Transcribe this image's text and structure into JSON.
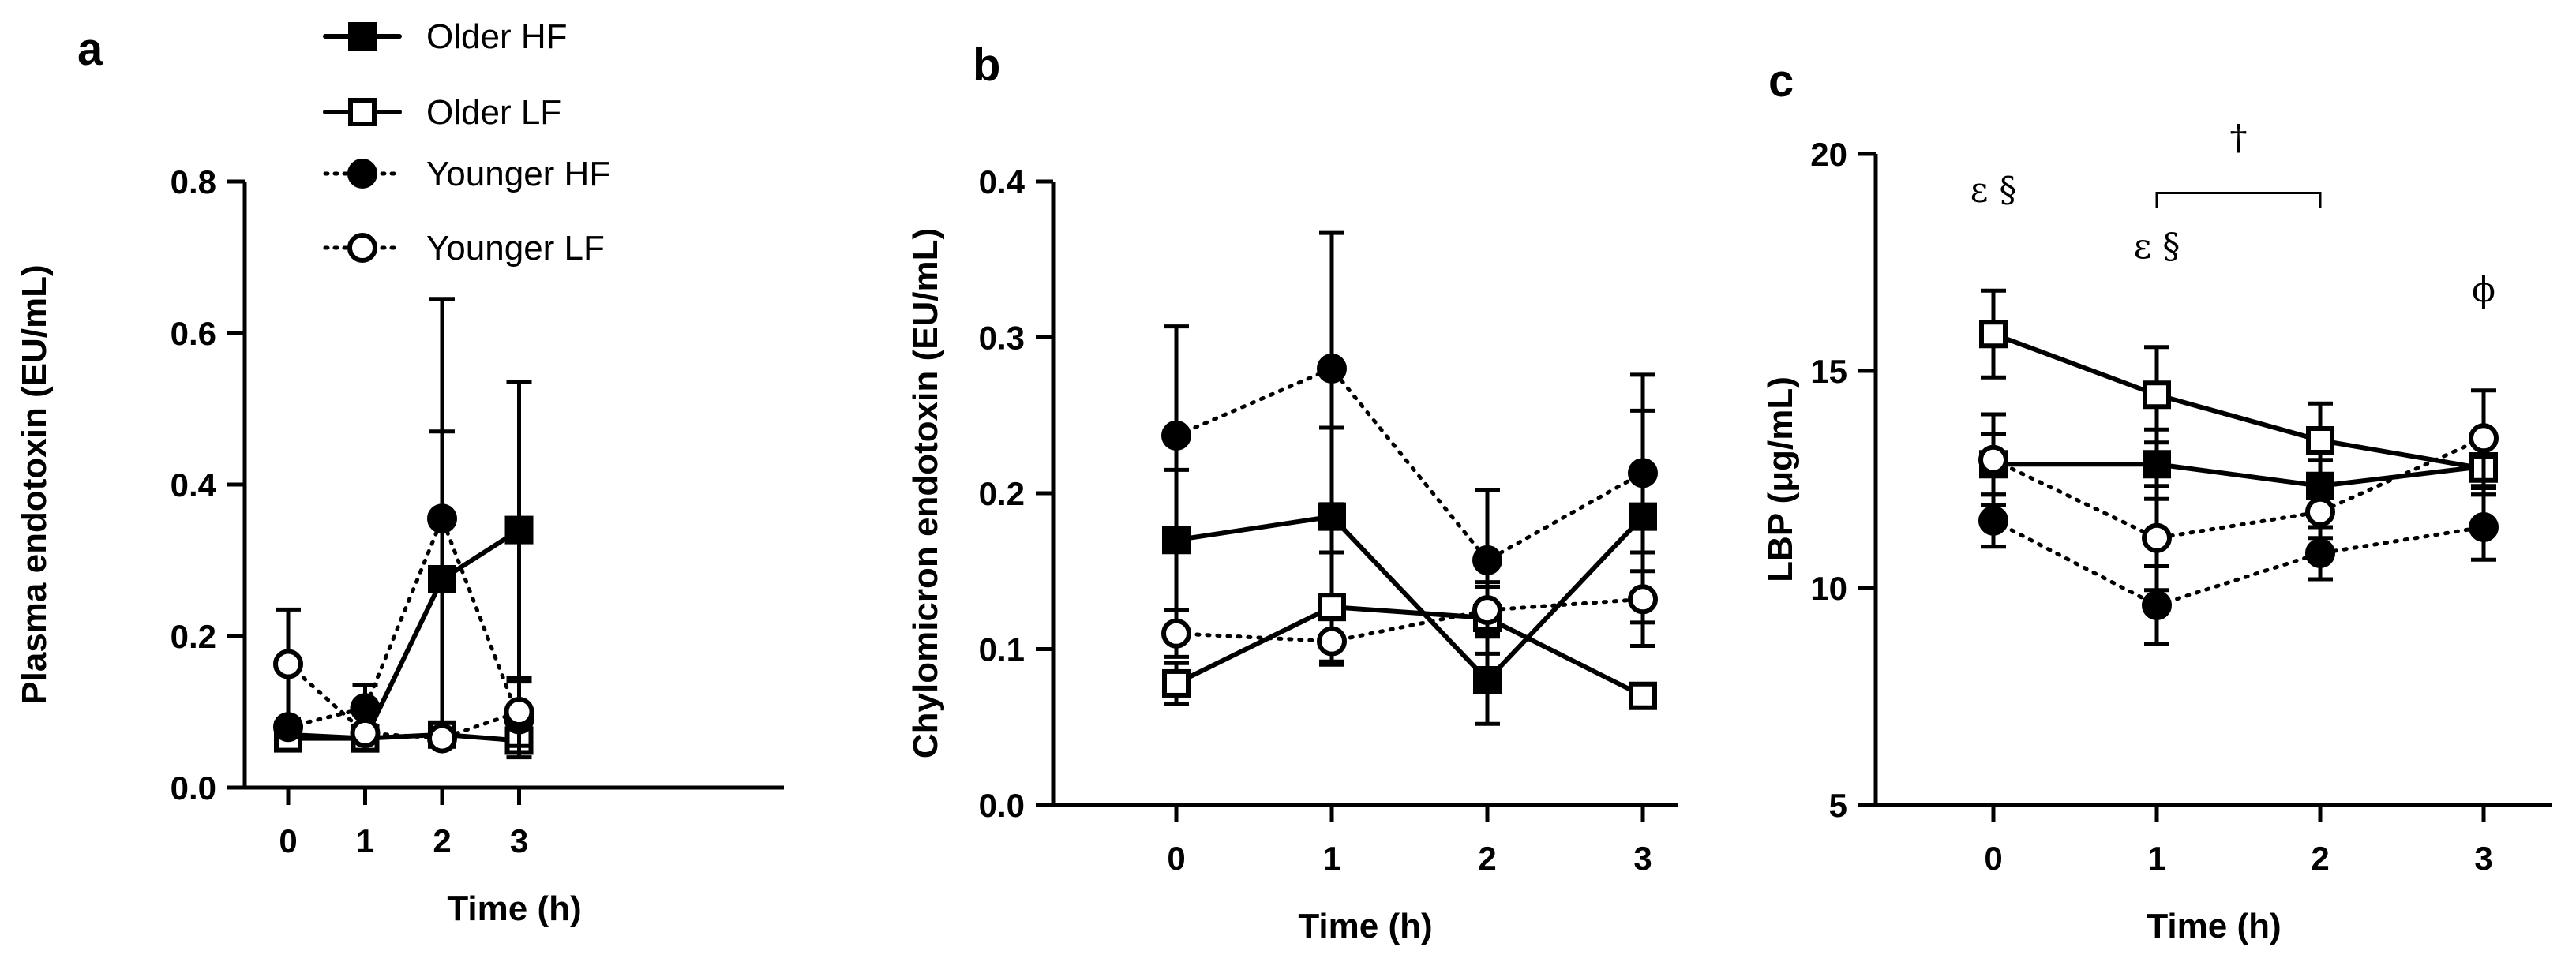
{
  "legend": [
    {
      "name": "Older HF",
      "marker": "square-filled",
      "line": "solid"
    },
    {
      "name": "Older LF",
      "marker": "square-open",
      "line": "solid"
    },
    {
      "name": "Younger HF",
      "marker": "circle-filled",
      "line": "dotted"
    },
    {
      "name": "Younger LF",
      "marker": "circle-open",
      "line": "dotted"
    }
  ],
  "chart_data": [
    {
      "panel": "a",
      "type": "line",
      "xlabel": "Time (h)",
      "ylabel": "Plasma endotoxin (EU/mL)",
      "x": [
        0,
        1,
        2,
        3
      ],
      "x_ticks": [
        "0",
        "1",
        "2",
        "3"
      ],
      "ylim": [
        0,
        0.8
      ],
      "y_ticks": [
        "0.0",
        "0.2",
        "0.4",
        "0.6",
        "0.8"
      ],
      "series": [
        {
          "name": "Older HF",
          "values": [
            0.07,
            0.065,
            0.275,
            0.34
          ],
          "error": [
            0.01,
            0.01,
            0.195,
            0.195
          ]
        },
        {
          "name": "Older LF",
          "values": [
            0.065,
            0.065,
            0.07,
            0.062
          ],
          "error": [
            0.01,
            0.01,
            0.01,
            0.01
          ]
        },
        {
          "name": "Younger HF",
          "values": [
            0.08,
            0.105,
            0.355,
            0.09
          ],
          "error": [
            0.01,
            0.03,
            0.29,
            0.05
          ]
        },
        {
          "name": "Younger LF",
          "values": [
            0.163,
            0.072,
            0.065,
            0.1
          ],
          "error": [
            0.072,
            0.01,
            0.01,
            0.045
          ]
        }
      ],
      "annotations": []
    },
    {
      "panel": "b",
      "type": "line",
      "xlabel": "Time (h)",
      "ylabel": "Chylomicron endotoxin (EU/mL)",
      "x": [
        0,
        1,
        2,
        3
      ],
      "x_ticks": [
        "0",
        "1",
        "2",
        "3"
      ],
      "ylim": [
        0,
        0.4
      ],
      "y_ticks": [
        "0.0",
        "0.1",
        "0.2",
        "0.3",
        "0.4"
      ],
      "series": [
        {
          "name": "Older HF",
          "values": [
            0.17,
            0.185,
            0.08,
            0.185
          ],
          "error": [
            0.045,
            0.057,
            0.028,
            0.068
          ]
        },
        {
          "name": "Older LF",
          "values": [
            0.078,
            0.127,
            0.12,
            0.07
          ],
          "error": [
            0.013,
            0.035,
            0.023,
            0.006
          ]
        },
        {
          "name": "Younger HF",
          "values": [
            0.237,
            0.28,
            0.157,
            0.213
          ],
          "error": [
            0.07,
            0.087,
            0.045,
            0.063
          ]
        },
        {
          "name": "Younger LF",
          "values": [
            0.11,
            0.105,
            0.125,
            0.132
          ],
          "error": [
            0.015,
            0.015,
            0.015,
            0.03
          ]
        }
      ],
      "annotations": []
    },
    {
      "panel": "c",
      "type": "line",
      "xlabel": "Time (h)",
      "ylabel": "LBP (μg/mL)",
      "x": [
        0,
        1,
        2,
        3
      ],
      "x_ticks": [
        "0",
        "1",
        "2",
        "3"
      ],
      "ylim": [
        5,
        20
      ],
      "y_ticks": [
        "5",
        "10",
        "15",
        "20"
      ],
      "series": [
        {
          "name": "Older HF",
          "values": [
            12.85,
            12.85,
            12.35,
            12.8
          ],
          "error": [
            0.7,
            0.8,
            0.6,
            0.5
          ]
        },
        {
          "name": "Older LF",
          "values": [
            15.85,
            14.45,
            13.4,
            12.75
          ],
          "error": [
            1.0,
            1.1,
            0.85,
            0.6
          ]
        },
        {
          "name": "Younger HF",
          "values": [
            11.55,
            9.6,
            10.8,
            11.4
          ],
          "error": [
            0.6,
            0.9,
            0.6,
            0.75
          ]
        },
        {
          "name": "Younger LF",
          "values": [
            12.95,
            11.15,
            11.75,
            13.45
          ],
          "error": [
            1.05,
            1.2,
            0.6,
            1.1
          ]
        }
      ],
      "annotations": [
        {
          "text": "ε §",
          "at_x": 0,
          "at_y": 18.9
        },
        {
          "text": "ε §",
          "at_x": 1,
          "at_y": 17.6
        },
        {
          "text": "†",
          "at_x": 1.5,
          "at_y": 20.1
        },
        {
          "text": "ϕ",
          "at_x": 3,
          "at_y": 16.6
        }
      ],
      "bracket": {
        "x_from": 1,
        "x_to": 2,
        "y": 19.1,
        "drop": 0.35
      }
    }
  ]
}
